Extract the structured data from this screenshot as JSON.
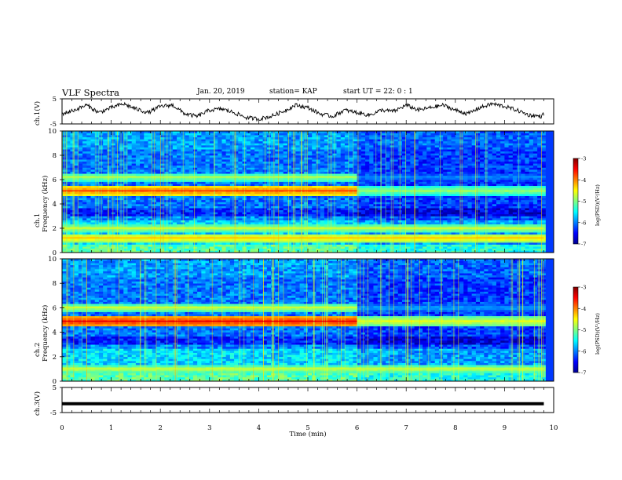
{
  "header": {
    "title": "VLF Spectra",
    "date": "Jan. 20, 2019",
    "station": "station= KAP",
    "start": "start UT =  22: 0 : 1"
  },
  "colors": {
    "trace": "#000000",
    "spectrum_low": "#00008f",
    "spectrum_high": "#7f0000"
  },
  "chart_data": [
    {
      "type": "line",
      "name": "ch1-waveform",
      "ylabel": "ch.1(V)",
      "ylim": [
        -5,
        5
      ],
      "yticks": [
        "5",
        "-5"
      ],
      "xlim": [
        0,
        10
      ],
      "x": [
        0.0,
        0.25,
        0.5,
        0.75,
        1.0,
        1.25,
        1.5,
        1.75,
        2.0,
        2.25,
        2.5,
        2.75,
        3.0,
        3.25,
        3.5,
        3.75,
        4.0,
        4.25,
        4.5,
        4.75,
        5.0,
        5.25,
        5.5,
        5.75,
        6.0,
        6.25,
        6.5,
        6.75,
        7.0,
        7.25,
        7.5,
        7.75,
        8.0,
        8.25,
        8.5,
        8.75,
        9.0,
        9.25,
        9.5,
        9.75,
        9.8
      ],
      "y": [
        -1.0,
        0.5,
        2.5,
        -0.5,
        1.5,
        3.0,
        1.0,
        -0.5,
        2.0,
        2.5,
        -1.0,
        -2.0,
        0.5,
        1.0,
        -0.5,
        -2.5,
        -3.0,
        -2.0,
        0.0,
        2.5,
        1.5,
        -1.0,
        -2.0,
        0.5,
        -0.5,
        -1.5,
        0.5,
        0.0,
        2.5,
        0.5,
        1.5,
        2.5,
        0.5,
        -1.0,
        1.5,
        3.0,
        2.0,
        0.5,
        -1.5,
        -2.0,
        -1.0
      ]
    },
    {
      "type": "heatmap",
      "name": "ch1-spectrogram",
      "ylabel": "ch.1\nFrequency (kHz)",
      "xlim": [
        0,
        10
      ],
      "ylim": [
        0,
        10
      ],
      "yticks": [
        "0",
        "2",
        "4",
        "6",
        "8",
        "10"
      ],
      "colorbar": {
        "label": "log(PSD)(V²/Hz)",
        "ticks": [
          "-3",
          "-4",
          "-5",
          "-6",
          "-7"
        ],
        "range": [
          -7,
          -3
        ]
      },
      "bands_khz": [
        {
          "f": 1.2,
          "level": -4.4
        },
        {
          "f": 2.0,
          "level": -4.8
        },
        {
          "f": 5.1,
          "level": -3.9
        },
        {
          "f": 6.2,
          "level": -4.9
        }
      ],
      "change_time_min": 6.0
    },
    {
      "type": "heatmap",
      "name": "ch2-spectrogram",
      "ylabel": "ch.2\nFrequency (kHz)",
      "xlim": [
        0,
        10
      ],
      "ylim": [
        0,
        10
      ],
      "yticks": [
        "0",
        "2",
        "4",
        "6",
        "8",
        "10"
      ],
      "colorbar": {
        "label": "log(PSD)(V²/Hz)",
        "ticks": [
          "-3",
          "-4",
          "-5",
          "-6",
          "-7"
        ],
        "range": [
          -7,
          -3
        ]
      },
      "bands_khz": [
        {
          "f": 1.0,
          "level": -4.8
        },
        {
          "f": 4.9,
          "level": -3.6
        },
        {
          "f": 6.0,
          "level": -4.8
        }
      ],
      "change_time_min": 6.0
    },
    {
      "type": "line",
      "name": "ch3-waveform",
      "ylabel": "ch.3(V)",
      "ylim": [
        -5,
        5
      ],
      "yticks": [
        "5",
        "-5"
      ],
      "x": [
        0,
        9.8
      ],
      "y": [
        -1.5,
        -1.5
      ]
    }
  ],
  "xaxis": {
    "label": "Time (min)",
    "ticks": [
      "0",
      "1",
      "2",
      "3",
      "4",
      "5",
      "6",
      "7",
      "8",
      "9",
      "10"
    ]
  }
}
